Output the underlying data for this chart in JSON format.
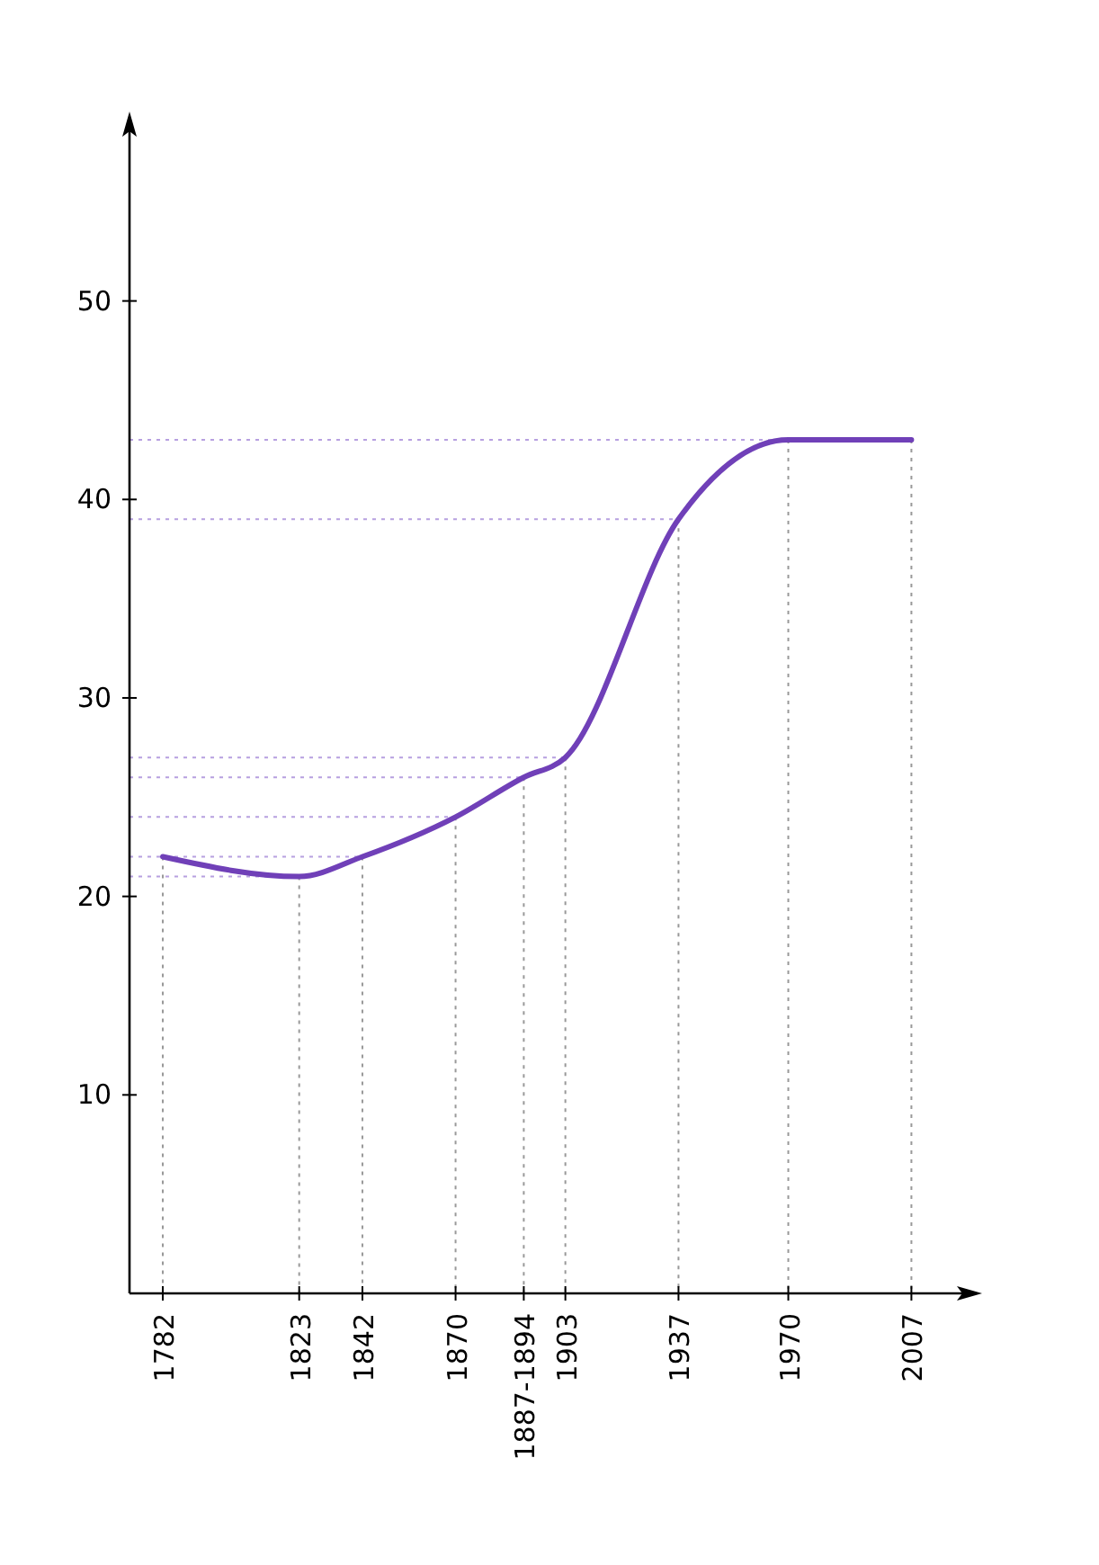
{
  "chart_data": {
    "type": "line",
    "x": [
      1782,
      1823,
      1842,
      1870,
      1890.5,
      1903,
      1937,
      1970,
      2007
    ],
    "series": [
      {
        "color": "#7040b8",
        "values": [
          22,
          21,
          22,
          24,
          26,
          27,
          39,
          43,
          43
        ]
      }
    ],
    "xlim": [
      1772,
      2025
    ],
    "xticks": [
      1782,
      1823,
      1842,
      1870,
      {
        "value": 1890.5,
        "label": "1887-1894"
      },
      1903,
      1937,
      1970,
      2007
    ],
    "ylim": [
      0,
      59
    ],
    "yticks": [
      10,
      20,
      30,
      40,
      50
    ],
    "ref_lines": [
      {
        "axis": "x",
        "value": 1782,
        "color": "#999999",
        "line_style": "dotted"
      },
      {
        "axis": "x",
        "value": 1823,
        "color": "#999999",
        "line_style": "dotted"
      },
      {
        "axis": "x",
        "value": 1842,
        "color": "#999999",
        "line_style": "dotted"
      },
      {
        "axis": "x",
        "value": 1870,
        "color": "#999999",
        "line_style": "dotted"
      },
      {
        "axis": "x",
        "value": 1890.5,
        "color": "#999999",
        "line_style": "dotted"
      },
      {
        "axis": "x",
        "value": 1903,
        "color": "#999999",
        "line_style": "dotted"
      },
      {
        "axis": "x",
        "value": 1937,
        "color": "#999999",
        "line_style": "dotted"
      },
      {
        "axis": "x",
        "value": 1970,
        "color": "#999999",
        "line_style": "dotted"
      },
      {
        "axis": "x",
        "value": 2007,
        "color": "#999999",
        "line_style": "dotted"
      },
      {
        "axis": "y",
        "value": 21,
        "color": "#b7a0e0",
        "line_style": "dotted"
      },
      {
        "axis": "y",
        "value": 22,
        "color": "#b7a0e0",
        "line_style": "dotted"
      },
      {
        "axis": "y",
        "value": 24,
        "color": "#b7a0e0",
        "line_style": "dotted"
      },
      {
        "axis": "y",
        "value": 26,
        "color": "#b7a0e0",
        "line_style": "dotted"
      },
      {
        "axis": "y",
        "value": 27,
        "color": "#b7a0e0",
        "line_style": "dotted"
      },
      {
        "axis": "y",
        "value": 39,
        "color": "#b7a0e0",
        "line_style": "dotted"
      },
      {
        "axis": "y",
        "value": 43,
        "color": "#b7a0e0",
        "line_style": "dotted"
      }
    ],
    "grid": false,
    "marker": "none",
    "line_style": "solid"
  }
}
